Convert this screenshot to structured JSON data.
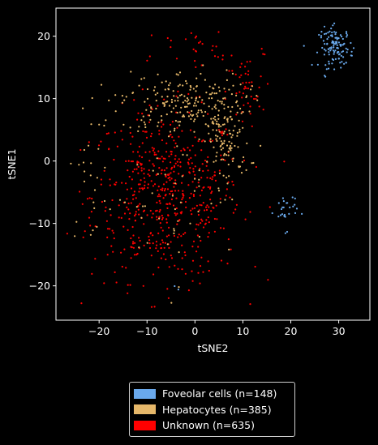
{
  "chart_data": {
    "type": "scatter",
    "title": "",
    "xlabel": "tSNE2",
    "ylabel": "tSNE1",
    "xlim": [
      -29,
      36.5
    ],
    "ylim": [
      -25.5,
      24.5
    ],
    "xticks": [
      -20,
      -10,
      0,
      10,
      20,
      30
    ],
    "yticks": [
      -20,
      -10,
      0,
      10,
      20
    ],
    "xtick_labels": [
      "−20",
      "−10",
      "0",
      "10",
      "20",
      "30"
    ],
    "ytick_labels": [
      "−20",
      "−10",
      "0",
      "10",
      "20"
    ],
    "grid": false,
    "legend_position": "bottom-center, below plot",
    "background": "#000000",
    "series": [
      {
        "name": "Foveolar cells (n=148)",
        "n": 148,
        "color": "#6aa9ec",
        "clusters": [
          {
            "center": [
              29.5,
              18.2
            ],
            "spread": [
              1.8,
              1.6
            ],
            "count": 118
          },
          {
            "center": [
              19.0,
              -8.0
            ],
            "spread": [
              1.2,
              1.5
            ],
            "count": 28
          },
          {
            "center": [
              -4.0,
              -20.3
            ],
            "spread": [
              0.5,
              0.5
            ],
            "count": 2
          }
        ]
      },
      {
        "name": "Hepatocytes (n=385)",
        "n": 385,
        "color": "#e6b86a",
        "clusters": [
          {
            "center": [
              -2.5,
              9.5
            ],
            "spread": [
              6.5,
              2.5
            ],
            "count": 200
          },
          {
            "center": [
              6.5,
              3.0
            ],
            "spread": [
              2.5,
              3.5
            ],
            "count": 110
          },
          {
            "center": [
              -22.0,
              -2.5
            ],
            "spread": [
              2.0,
              5.0
            ],
            "count": 25
          },
          {
            "center": [
              -6.0,
              -6.0
            ],
            "spread": [
              7.5,
              7.0
            ],
            "count": 50
          }
        ]
      },
      {
        "name": "Unknown (n=635)",
        "n": 635,
        "color": "#ff0000",
        "clusters": [
          {
            "center": [
              -6.0,
              -5.5
            ],
            "spread": [
              7.8,
              6.8
            ],
            "count": 560
          },
          {
            "center": [
              10.5,
              11.0
            ],
            "spread": [
              2.0,
              3.0
            ],
            "count": 45
          },
          {
            "center": [
              2.0,
              18.0
            ],
            "spread": [
              7.0,
              2.0
            ],
            "count": 30
          }
        ]
      }
    ]
  }
}
